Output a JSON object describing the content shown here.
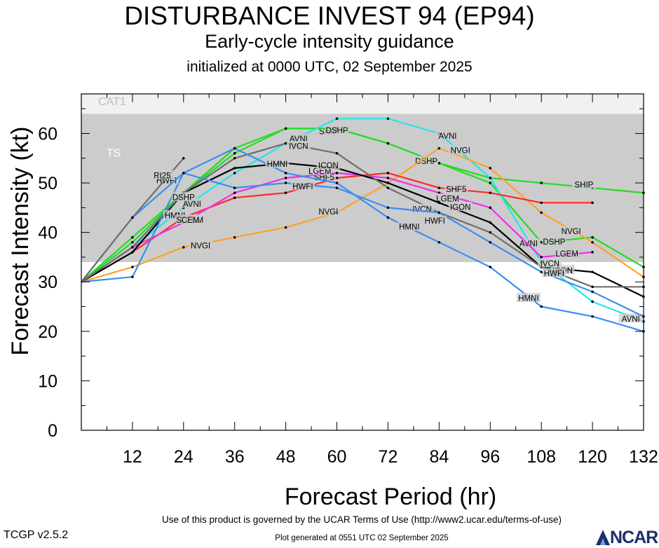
{
  "chart_data": {
    "type": "line",
    "title": "DISTURBANCE INVEST 94 (EP94)",
    "subtitle": "Early-cycle intensity guidance",
    "init_text": "initialized at 0000 UTC, 02 September 2025",
    "xlabel": "Forecast Period (hr)",
    "ylabel": "Forecast Intensity (kt)",
    "xlim": [
      0,
      132
    ],
    "ylim": [
      0,
      68
    ],
    "xticks": [
      12,
      24,
      36,
      48,
      60,
      72,
      84,
      96,
      108,
      120,
      132
    ],
    "yticks": [
      0,
      10,
      20,
      30,
      40,
      50,
      60
    ],
    "bands": [
      {
        "label": "TS",
        "from": 34,
        "to": 64,
        "color": "#cccccc"
      },
      {
        "label": "CAT1",
        "from": 64,
        "to": 68,
        "color": "#f1f1f1"
      }
    ],
    "series": [
      {
        "name": "SHIP",
        "color": "#22dd22",
        "x": [
          0,
          12,
          24,
          36,
          48,
          60,
          72,
          84,
          96,
          108,
          120,
          132
        ],
        "y": [
          30,
          38,
          48,
          56,
          61,
          61,
          58,
          54,
          51,
          50,
          49,
          48
        ],
        "labels": [
          {
            "x": 58,
            "y": 60.5
          },
          {
            "x": 118,
            "y": 49.7
          }
        ]
      },
      {
        "name": "DSHP",
        "color": "#22dd22",
        "x": [
          0,
          12,
          24,
          36,
          48,
          60,
          72,
          84,
          96,
          108,
          120,
          132
        ],
        "y": [
          30,
          39,
          48,
          57,
          61,
          61,
          58,
          54,
          50,
          38,
          39,
          33
        ],
        "labels": [
          {
            "x": 60,
            "y": 60.7
          },
          {
            "x": 81,
            "y": 54.5
          },
          {
            "x": 111,
            "y": 38.2
          }
        ]
      },
      {
        "name": "AVNI",
        "color": "#22e5ee",
        "x": [
          0,
          12,
          24,
          36,
          48,
          60,
          72,
          84,
          96,
          108,
          120,
          132
        ],
        "y": [
          30,
          37,
          45,
          52,
          58,
          63,
          63,
          60,
          51,
          34,
          26,
          22
        ],
        "labels": [
          {
            "x": 26,
            "y": 45.8
          },
          {
            "x": 51,
            "y": 59
          },
          {
            "x": 86,
            "y": 59.6
          },
          {
            "x": 105,
            "y": 37.8
          },
          {
            "x": 129,
            "y": 22.6
          }
        ]
      },
      {
        "name": "NVGI",
        "color": "#ffa126",
        "x": [
          0,
          12,
          24,
          36,
          48,
          60,
          72,
          84,
          96,
          108,
          120,
          132
        ],
        "y": [
          30,
          33,
          37,
          39,
          41,
          44,
          50,
          57,
          53,
          44,
          38,
          31
        ],
        "labels": [
          {
            "x": 28,
            "y": 37.4
          },
          {
            "x": 58,
            "y": 44.3
          },
          {
            "x": 89,
            "y": 56.7
          },
          {
            "x": 115,
            "y": 40.3
          }
        ]
      },
      {
        "name": "SHF5",
        "color": "#ff2a2a",
        "x": [
          0,
          12,
          24,
          36,
          48,
          60,
          72,
          84,
          96,
          108,
          120
        ],
        "y": [
          30,
          36,
          43,
          47,
          48,
          51,
          52,
          49,
          48,
          46,
          46
        ],
        "labels": [
          {
            "x": 57,
            "y": 51.2
          },
          {
            "x": 88,
            "y": 48.8
          }
        ]
      },
      {
        "name": "LGEM",
        "color": "#ef2fef",
        "x": [
          0,
          12,
          24,
          36,
          48,
          60,
          72,
          84,
          96,
          108,
          120
        ],
        "y": [
          30,
          37,
          42,
          48,
          51,
          52,
          51,
          48,
          45,
          35,
          36
        ],
        "labels": [
          {
            "x": 26,
            "y": 42.6
          },
          {
            "x": 56,
            "y": 52.5
          },
          {
            "x": 86,
            "y": 46.9
          },
          {
            "x": 114,
            "y": 35.8
          }
        ]
      },
      {
        "name": "ICON",
        "color": "#000000",
        "x": [
          0,
          12,
          24,
          36,
          48,
          60,
          72,
          84,
          96,
          108,
          120,
          132
        ],
        "y": [
          30,
          36,
          48,
          53,
          54,
          53,
          50,
          46,
          42,
          33,
          32,
          27
        ],
        "labels": [
          {
            "x": 58,
            "y": 53.6
          },
          {
            "x": 113,
            "y": 32.4
          }
        ]
      },
      {
        "name": "IVCN",
        "color": "#6e6e6e",
        "x": [
          0,
          12,
          24,
          36,
          48,
          60,
          72,
          84,
          96,
          108,
          120,
          132
        ],
        "y": [
          30,
          37,
          48,
          55,
          58,
          56,
          49,
          44,
          40,
          33,
          29,
          29
        ],
        "labels": [
          {
            "x": 51,
            "y": 57.5
          },
          {
            "x": 80,
            "y": 44.8
          },
          {
            "x": 110,
            "y": 33.8
          }
        ]
      },
      {
        "name": "IGON",
        "color": "#000000",
        "x": [],
        "y": [],
        "labels": [
          {
            "x": 89,
            "y": 45.2
          }
        ]
      },
      {
        "name": "HWFI",
        "color": "#3a8ef2",
        "x": [
          0,
          12,
          24,
          36,
          48,
          60,
          72,
          84,
          96,
          108,
          120,
          132
        ],
        "y": [
          30,
          31,
          52,
          49,
          50,
          49,
          45,
          44,
          38,
          32,
          28,
          23
        ],
        "labels": [
          {
            "x": 20,
            "y": 50.6
          },
          {
            "x": 52,
            "y": 49.4
          },
          {
            "x": 83,
            "y": 42.4
          },
          {
            "x": 111,
            "y": 31.8
          }
        ]
      },
      {
        "name": "HMNI",
        "color": "#3a8ef2",
        "x": [
          0,
          12,
          24,
          36,
          48,
          60,
          72,
          84,
          96,
          108,
          120,
          132
        ],
        "y": [
          30,
          43,
          52,
          57,
          52,
          50,
          43,
          38,
          33,
          25,
          23,
          20
        ],
        "labels": [
          {
            "x": 22,
            "y": 43.5
          },
          {
            "x": 46,
            "y": 53.9
          },
          {
            "x": 77,
            "y": 41.2
          },
          {
            "x": 105,
            "y": 26.8
          }
        ]
      },
      {
        "name": "RI25",
        "color": "#6e6e6e",
        "x": [
          0,
          12,
          24
        ],
        "y": [
          30,
          43,
          55
        ],
        "labels": [
          {
            "x": 19,
            "y": 51.6
          }
        ]
      },
      {
        "name": "SCEM",
        "color": "#ff2a2a",
        "x": [],
        "y": [],
        "labels": [
          {
            "x": 25,
            "y": 42.6
          }
        ]
      },
      {
        "name": "DSHP",
        "color": "#22dd22",
        "x": [],
        "y": [],
        "labels": [
          {
            "x": 24,
            "y": 47.2
          }
        ]
      }
    ]
  },
  "footer": {
    "terms": "Use of this product is governed by the UCAR Terms of Use (http://www2.ucar.edu/terms-of-use)",
    "version": "TCGP v2.5.2",
    "generated": "Plot generated at 0551 UTC   02 September 2025",
    "logo_text": "NCAR"
  }
}
